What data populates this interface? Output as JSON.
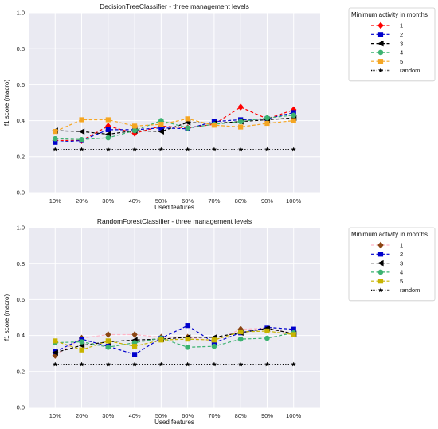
{
  "chart_data": [
    {
      "type": "line",
      "title": "DecisionTreeClassifier - three management levels",
      "xlabel": "Used features",
      "ylabel": "f1 score (macro)",
      "ylim": [
        0,
        1
      ],
      "yticks": [
        "0.0",
        "0.2",
        "0.4",
        "0.6",
        "0.8",
        "1.0"
      ],
      "categories": [
        "10%",
        "20%",
        "30%",
        "40%",
        "50%",
        "60%",
        "70%",
        "80%",
        "90%",
        "100%"
      ],
      "grid": true,
      "legend_placement": "outside-right",
      "legend_title": "Minimum activity in months",
      "series": [
        {
          "name": "1",
          "color": "#ff0000",
          "marker": "diamond",
          "values": [
            0.29,
            0.29,
            0.37,
            0.33,
            0.37,
            0.36,
            0.38,
            0.475,
            0.41,
            0.46
          ]
        },
        {
          "name": "2",
          "color": "#0000cc",
          "marker": "square",
          "values": [
            0.28,
            0.29,
            0.35,
            0.35,
            0.36,
            0.355,
            0.395,
            0.405,
            0.41,
            0.445
          ]
        },
        {
          "name": "3",
          "color": "#000000",
          "marker": "triangle-left",
          "values": [
            0.345,
            0.34,
            0.325,
            0.345,
            0.34,
            0.39,
            0.385,
            0.395,
            0.405,
            0.415
          ]
        },
        {
          "name": "4",
          "color": "#3cb371",
          "marker": "circle",
          "values": [
            0.3,
            0.295,
            0.305,
            0.345,
            0.4,
            0.36,
            0.38,
            0.395,
            0.415,
            0.43
          ]
        },
        {
          "name": "5",
          "color": "#f5a623",
          "marker": "square",
          "values": [
            0.34,
            0.405,
            0.405,
            0.37,
            0.38,
            0.41,
            0.375,
            0.365,
            0.385,
            0.4
          ]
        },
        {
          "name": "random",
          "color": "#000000",
          "marker": "star",
          "values": [
            0.24,
            0.24,
            0.24,
            0.24,
            0.24,
            0.24,
            0.24,
            0.24,
            0.24,
            0.24
          ]
        }
      ]
    },
    {
      "type": "line",
      "title": "RandomForestClassifier - three management levels",
      "xlabel": "Used features",
      "ylabel": "f1 score (macro)",
      "ylim": [
        0,
        1
      ],
      "yticks": [
        "0.0",
        "0.2",
        "0.4",
        "0.6",
        "0.8",
        "1.0"
      ],
      "categories": [
        "10%",
        "20%",
        "30%",
        "40%",
        "50%",
        "60%",
        "70%",
        "80%",
        "90%",
        "100%"
      ],
      "grid": true,
      "legend_placement": "outside-right",
      "legend_title": "Minimum activity in months",
      "series": [
        {
          "name": "1",
          "color": "#ffb3c6",
          "marker": "diamond",
          "markerColor": "#8b4513",
          "values": [
            0.29,
            0.385,
            0.405,
            0.405,
            0.39,
            0.39,
            0.37,
            0.435,
            0.44,
            0.41
          ]
        },
        {
          "name": "2",
          "color": "#0000cc",
          "marker": "square",
          "values": [
            0.31,
            0.38,
            0.34,
            0.295,
            0.385,
            0.455,
            0.36,
            0.415,
            0.445,
            0.435
          ]
        },
        {
          "name": "3",
          "color": "#000000",
          "marker": "triangle-left",
          "values": [
            0.305,
            0.345,
            0.365,
            0.375,
            0.38,
            0.39,
            0.39,
            0.415,
            0.44,
            0.41
          ]
        },
        {
          "name": "4",
          "color": "#3cb371",
          "marker": "circle",
          "values": [
            0.36,
            0.365,
            0.335,
            0.36,
            0.385,
            0.335,
            0.34,
            0.38,
            0.385,
            0.415
          ]
        },
        {
          "name": "5",
          "color": "#c8b400",
          "marker": "square",
          "values": [
            0.37,
            0.32,
            0.37,
            0.34,
            0.375,
            0.38,
            0.375,
            0.42,
            0.425,
            0.405
          ]
        },
        {
          "name": "random",
          "color": "#000000",
          "marker": "star",
          "values": [
            0.24,
            0.24,
            0.24,
            0.24,
            0.24,
            0.24,
            0.24,
            0.24,
            0.24,
            0.24
          ]
        }
      ]
    }
  ]
}
